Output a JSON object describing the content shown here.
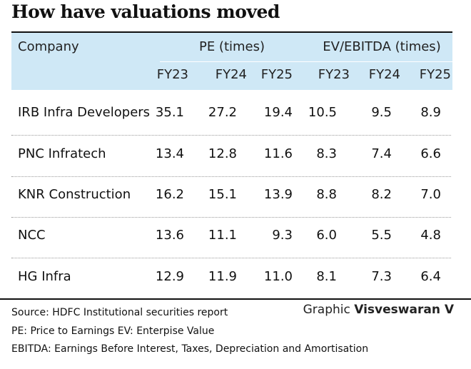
{
  "title": "How have valuations moved",
  "header": {
    "company": "Company",
    "pe_group": "PE (times)",
    "ev_group": "EV/EBITDA (times)",
    "years": [
      "FY23",
      "FY24",
      "FY25",
      "FY23",
      "FY24",
      "FY25"
    ]
  },
  "rows": [
    {
      "company": "IRB Infra Developers",
      "values": [
        "35.1",
        "27.2",
        "19.4",
        "10.5",
        "9.5",
        "8.9"
      ]
    },
    {
      "company": "PNC Infratech",
      "values": [
        "13.4",
        "12.8",
        "11.6",
        "8.3",
        "7.4",
        "6.6"
      ]
    },
    {
      "company": "KNR Construction",
      "values": [
        "16.2",
        "15.1",
        "13.9",
        "8.8",
        "8.2",
        "7.0"
      ]
    },
    {
      "company": "NCC",
      "values": [
        "13.6",
        "11.1",
        "9.3",
        "6.0",
        "5.5",
        "4.8"
      ]
    },
    {
      "company": "HG Infra",
      "values": [
        "12.9",
        "11.9",
        "11.0",
        "8.1",
        "7.3",
        "6.4"
      ]
    }
  ],
  "footnotes": {
    "source": "Source: HDFC Institutional securities report",
    "pe_ev": "PE: Price to Earnings EV: Enterpise Value",
    "ebitda": "EBITDA: Earnings Before Interest, Taxes, Depreciation and Amortisation"
  },
  "credit": {
    "prefix": "Graphic",
    "name": "Visveswaran V"
  },
  "colors": {
    "header_bg": "#cfe8f6"
  }
}
